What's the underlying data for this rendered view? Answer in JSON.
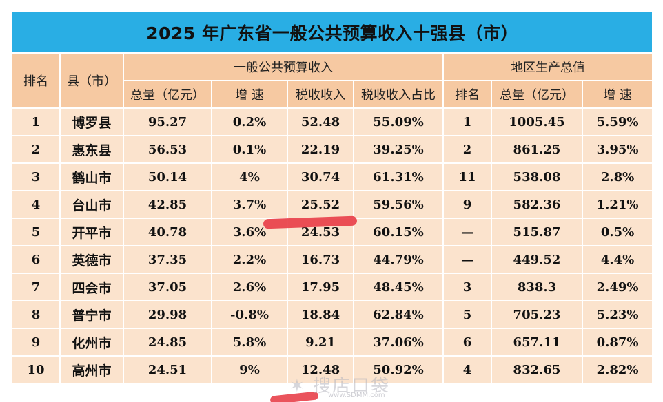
{
  "title": "2025 年广东省一般公共预算收入十强县（市）",
  "headers": {
    "rank": "排名",
    "county": "县（市）",
    "budget_group": "一般公共预算收入",
    "gdp_group": "地区生产总值",
    "budget_total": "总量（亿元）",
    "budget_growth": "增 速",
    "tax_revenue": "税收收入",
    "tax_share": "税收收入占比",
    "gdp_rank": "排名",
    "gdp_total": "总量（亿元）",
    "gdp_growth": "增 速"
  },
  "rows": [
    {
      "rank": "1",
      "name": "博罗县",
      "budget_total": "95.27",
      "budget_growth": "0.2%",
      "tax": "52.48",
      "tax_share": "55.09%",
      "gdp_rank": "1",
      "gdp_total": "1005.45",
      "gdp_growth": "5.59%"
    },
    {
      "rank": "2",
      "name": "惠东县",
      "budget_total": "56.53",
      "budget_growth": "0.1%",
      "tax": "22.19",
      "tax_share": "39.25%",
      "gdp_rank": "2",
      "gdp_total": "861.25",
      "gdp_growth": "3.95%"
    },
    {
      "rank": "3",
      "name": "鹤山市",
      "budget_total": "50.14",
      "budget_growth": "4%",
      "tax": "30.74",
      "tax_share": "61.31%",
      "gdp_rank": "11",
      "gdp_total": "538.08",
      "gdp_growth": "2.8%"
    },
    {
      "rank": "4",
      "name": "台山市",
      "budget_total": "42.85",
      "budget_growth": "3.7%",
      "tax": "25.52",
      "tax_share": "59.56%",
      "gdp_rank": "9",
      "gdp_total": "582.36",
      "gdp_growth": "1.21%"
    },
    {
      "rank": "5",
      "name": "开平市",
      "budget_total": "40.78",
      "budget_growth": "3.6%",
      "tax": "24.53",
      "tax_share": "60.15%",
      "gdp_rank": "—",
      "gdp_total": "515.87",
      "gdp_growth": "0.5%"
    },
    {
      "rank": "6",
      "name": "英德市",
      "budget_total": "37.35",
      "budget_growth": "2.2%",
      "tax": "16.73",
      "tax_share": "44.79%",
      "gdp_rank": "—",
      "gdp_total": "449.52",
      "gdp_growth": "4.4%"
    },
    {
      "rank": "7",
      "name": "四会市",
      "budget_total": "37.05",
      "budget_growth": "2.6%",
      "tax": "17.95",
      "tax_share": "48.45%",
      "gdp_rank": "3",
      "gdp_total": "838.3",
      "gdp_growth": "2.49%"
    },
    {
      "rank": "8",
      "name": "普宁市",
      "budget_total": "29.98",
      "budget_growth": "-0.8%",
      "tax": "18.84",
      "tax_share": "62.84%",
      "gdp_rank": "5",
      "gdp_total": "705.23",
      "gdp_growth": "5.23%"
    },
    {
      "rank": "9",
      "name": "化州市",
      "budget_total": "24.85",
      "budget_growth": "5.8%",
      "tax": "9.21",
      "tax_share": "37.06%",
      "gdp_rank": "6",
      "gdp_total": "657.11",
      "gdp_growth": "0.87%"
    },
    {
      "rank": "10",
      "name": "高州市",
      "budget_total": "24.51",
      "budget_growth": "9%",
      "tax": "12.48",
      "tax_share": "50.92%",
      "gdp_rank": "4",
      "gdp_total": "832.65",
      "gdp_growth": "2.82%"
    }
  ],
  "watermark": {
    "text": "搜店口袋",
    "url": "www.SDMM.com"
  },
  "colors": {
    "title_bg": "#29aee4",
    "header_bg": "#f6c9a2",
    "row_bg": "#fbe3cd",
    "highlight_mark": "#e8404a"
  }
}
